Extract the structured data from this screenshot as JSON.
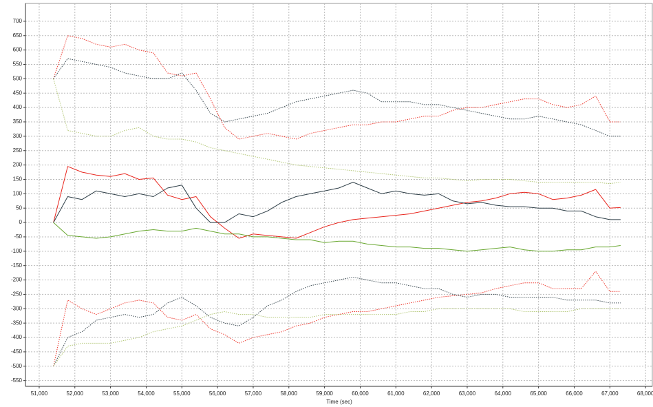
{
  "chart_data": {
    "type": "line",
    "x_label": "Time (sec)",
    "x": [
      51400,
      51800,
      52200,
      52600,
      53000,
      53400,
      53800,
      54200,
      54600,
      55000,
      55400,
      55800,
      56200,
      56600,
      57000,
      57400,
      57800,
      58200,
      58600,
      59000,
      59400,
      59800,
      60200,
      60600,
      61000,
      61400,
      61800,
      62200,
      62600,
      63000,
      63400,
      63800,
      64200,
      64600,
      65000,
      65400,
      65800,
      66200,
      66600,
      67000,
      67300
    ],
    "series": [
      {
        "color": "#e8261e",
        "style": "solid",
        "values": [
          0,
          195,
          175,
          165,
          160,
          170,
          150,
          155,
          95,
          80,
          90,
          20,
          -20,
          -55,
          -40,
          -45,
          -50,
          -55,
          -35,
          -15,
          0,
          10,
          15,
          20,
          25,
          30,
          40,
          50,
          60,
          70,
          75,
          85,
          100,
          105,
          100,
          80,
          85,
          95,
          115,
          50,
          52
        ]
      },
      {
        "color": "#2f3f48",
        "style": "solid",
        "values": [
          0,
          90,
          80,
          110,
          100,
          90,
          100,
          90,
          120,
          130,
          50,
          0,
          0,
          30,
          20,
          40,
          70,
          90,
          100,
          110,
          120,
          140,
          120,
          100,
          110,
          100,
          95,
          100,
          75,
          65,
          70,
          60,
          55,
          55,
          50,
          50,
          40,
          40,
          20,
          10,
          10
        ]
      },
      {
        "color": "#6aa832",
        "style": "solid",
        "values": [
          0,
          -45,
          -50,
          -55,
          -50,
          -40,
          -30,
          -25,
          -30,
          -30,
          -20,
          -30,
          -40,
          -40,
          -50,
          -50,
          -55,
          -60,
          -60,
          -70,
          -65,
          -65,
          -75,
          -80,
          -85,
          -85,
          -90,
          -90,
          -95,
          -100,
          -95,
          -90,
          -85,
          -95,
          -100,
          -100,
          -95,
          -95,
          -85,
          -85,
          -80
        ]
      },
      {
        "color": "#ee3a30",
        "style": "dotted",
        "values": [
          500,
          650,
          640,
          620,
          610,
          620,
          600,
          590,
          520,
          510,
          520,
          430,
          330,
          290,
          300,
          310,
          300,
          290,
          310,
          320,
          330,
          340,
          340,
          350,
          350,
          360,
          370,
          370,
          390,
          400,
          400,
          410,
          420,
          430,
          430,
          410,
          400,
          410,
          440,
          350,
          350
        ]
      },
      {
        "color": "#3b4a52",
        "style": "dotted",
        "values": [
          500,
          570,
          560,
          550,
          540,
          520,
          510,
          500,
          500,
          520,
          460,
          380,
          350,
          360,
          370,
          380,
          400,
          420,
          430,
          440,
          450,
          460,
          450,
          420,
          420,
          420,
          410,
          410,
          400,
          390,
          380,
          370,
          360,
          360,
          370,
          360,
          350,
          340,
          320,
          300,
          300
        ]
      },
      {
        "color": "#b3c777",
        "style": "dotted",
        "values": [
          500,
          320,
          310,
          300,
          300,
          320,
          330,
          300,
          290,
          290,
          280,
          260,
          250,
          240,
          230,
          220,
          210,
          200,
          195,
          190,
          185,
          180,
          175,
          170,
          165,
          160,
          155,
          155,
          150,
          145,
          150,
          150,
          150,
          145,
          140,
          140,
          140,
          140,
          140,
          135,
          140
        ]
      },
      {
        "color": "#ee3a30",
        "style": "dotted",
        "values": [
          -500,
          -270,
          -300,
          -320,
          -300,
          -280,
          -270,
          -280,
          -330,
          -340,
          -320,
          -370,
          -390,
          -420,
          -400,
          -390,
          -380,
          -360,
          -350,
          -330,
          -320,
          -310,
          -310,
          -300,
          -290,
          -280,
          -270,
          -260,
          -255,
          -250,
          -245,
          -230,
          -220,
          -210,
          -210,
          -230,
          -230,
          -230,
          -170,
          -240,
          -240
        ]
      },
      {
        "color": "#3b4a52",
        "style": "dotted",
        "values": [
          -500,
          -400,
          -380,
          -340,
          -330,
          -320,
          -330,
          -320,
          -280,
          -260,
          -290,
          -330,
          -350,
          -360,
          -330,
          -290,
          -270,
          -240,
          -220,
          -210,
          -200,
          -190,
          -200,
          -210,
          -210,
          -220,
          -230,
          -230,
          -250,
          -260,
          -250,
          -250,
          -260,
          -260,
          -260,
          -260,
          -270,
          -270,
          -270,
          -280,
          -280
        ]
      },
      {
        "color": "#b3c777",
        "style": "dotted",
        "values": [
          -500,
          -430,
          -420,
          -420,
          -420,
          -410,
          -400,
          -380,
          -370,
          -360,
          -340,
          -320,
          -310,
          -320,
          -320,
          -330,
          -330,
          -330,
          -330,
          -320,
          -320,
          -320,
          -320,
          -320,
          -320,
          -310,
          -310,
          -300,
          -300,
          -300,
          -300,
          -300,
          -300,
          -310,
          -310,
          -310,
          -310,
          -300,
          -300,
          -300,
          -300
        ]
      }
    ],
    "xlim": [
      50615,
      68190
    ],
    "xticks": [
      {
        "value": 51000,
        "label": "51,000"
      },
      {
        "value": 52000,
        "label": "52,000"
      },
      {
        "value": 53000,
        "label": "53,000"
      },
      {
        "value": 54000,
        "label": "54,000"
      },
      {
        "value": 55000,
        "label": "55,000"
      },
      {
        "value": 56000,
        "label": "56,000"
      },
      {
        "value": 57000,
        "label": "57,000"
      },
      {
        "value": 58000,
        "label": "58,000"
      },
      {
        "value": 59000,
        "label": "59,000"
      },
      {
        "value": 60000,
        "label": "60,000"
      },
      {
        "value": 61000,
        "label": "61,000"
      },
      {
        "value": 62000,
        "label": "62,000"
      },
      {
        "value": 63000,
        "label": "63,000"
      },
      {
        "value": 64000,
        "label": "64,000"
      },
      {
        "value": 65000,
        "label": "65,000"
      },
      {
        "value": 66000,
        "label": "66,000"
      },
      {
        "value": 67000,
        "label": "67,000"
      },
      {
        "value": 68000,
        "label": "68,000"
      }
    ],
    "ylim": [
      -570,
      762
    ],
    "yticks": [
      700,
      650,
      600,
      550,
      500,
      450,
      400,
      350,
      300,
      250,
      200,
      150,
      100,
      50,
      0,
      -50,
      -100,
      -150,
      -200,
      -250,
      -300,
      -350,
      -400,
      -450,
      -500,
      -550
    ],
    "grid": true
  }
}
